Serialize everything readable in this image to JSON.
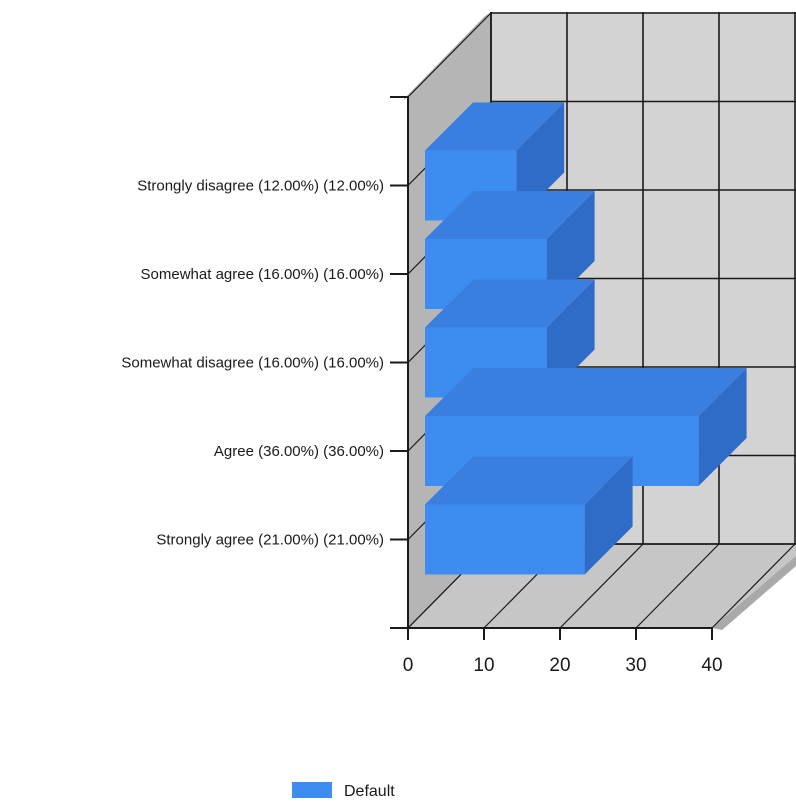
{
  "chart_data": {
    "type": "bar",
    "orientation": "horizontal",
    "style": "3d",
    "categories": [
      "Strongly agree (21.00%) (21.00%)",
      "Agree (36.00%) (36.00%)",
      "Somewhat disagree (16.00%) (16.00%)",
      "Somewhat agree (16.00%) (16.00%)",
      "Strongly disagree (12.00%) (12.00%)"
    ],
    "series": [
      {
        "name": "Default",
        "values": [
          21,
          36,
          16,
          16,
          12
        ]
      }
    ],
    "xlim": [
      0,
      40
    ],
    "x_ticks": [
      "0",
      "10",
      "20",
      "30",
      "40"
    ],
    "grid": true,
    "legend_position": "bottom-center",
    "colors": {
      "bar_front": "#3d8df0",
      "bar_top": "#3a7fe0",
      "bar_side": "#2f6cc8",
      "back_wall": "#d3d3d3",
      "side_wall": "#b5b5b5",
      "floor": "#c6c6c6",
      "wall_edge": "#a9a9a9",
      "grid": "#1a1a1a"
    }
  }
}
